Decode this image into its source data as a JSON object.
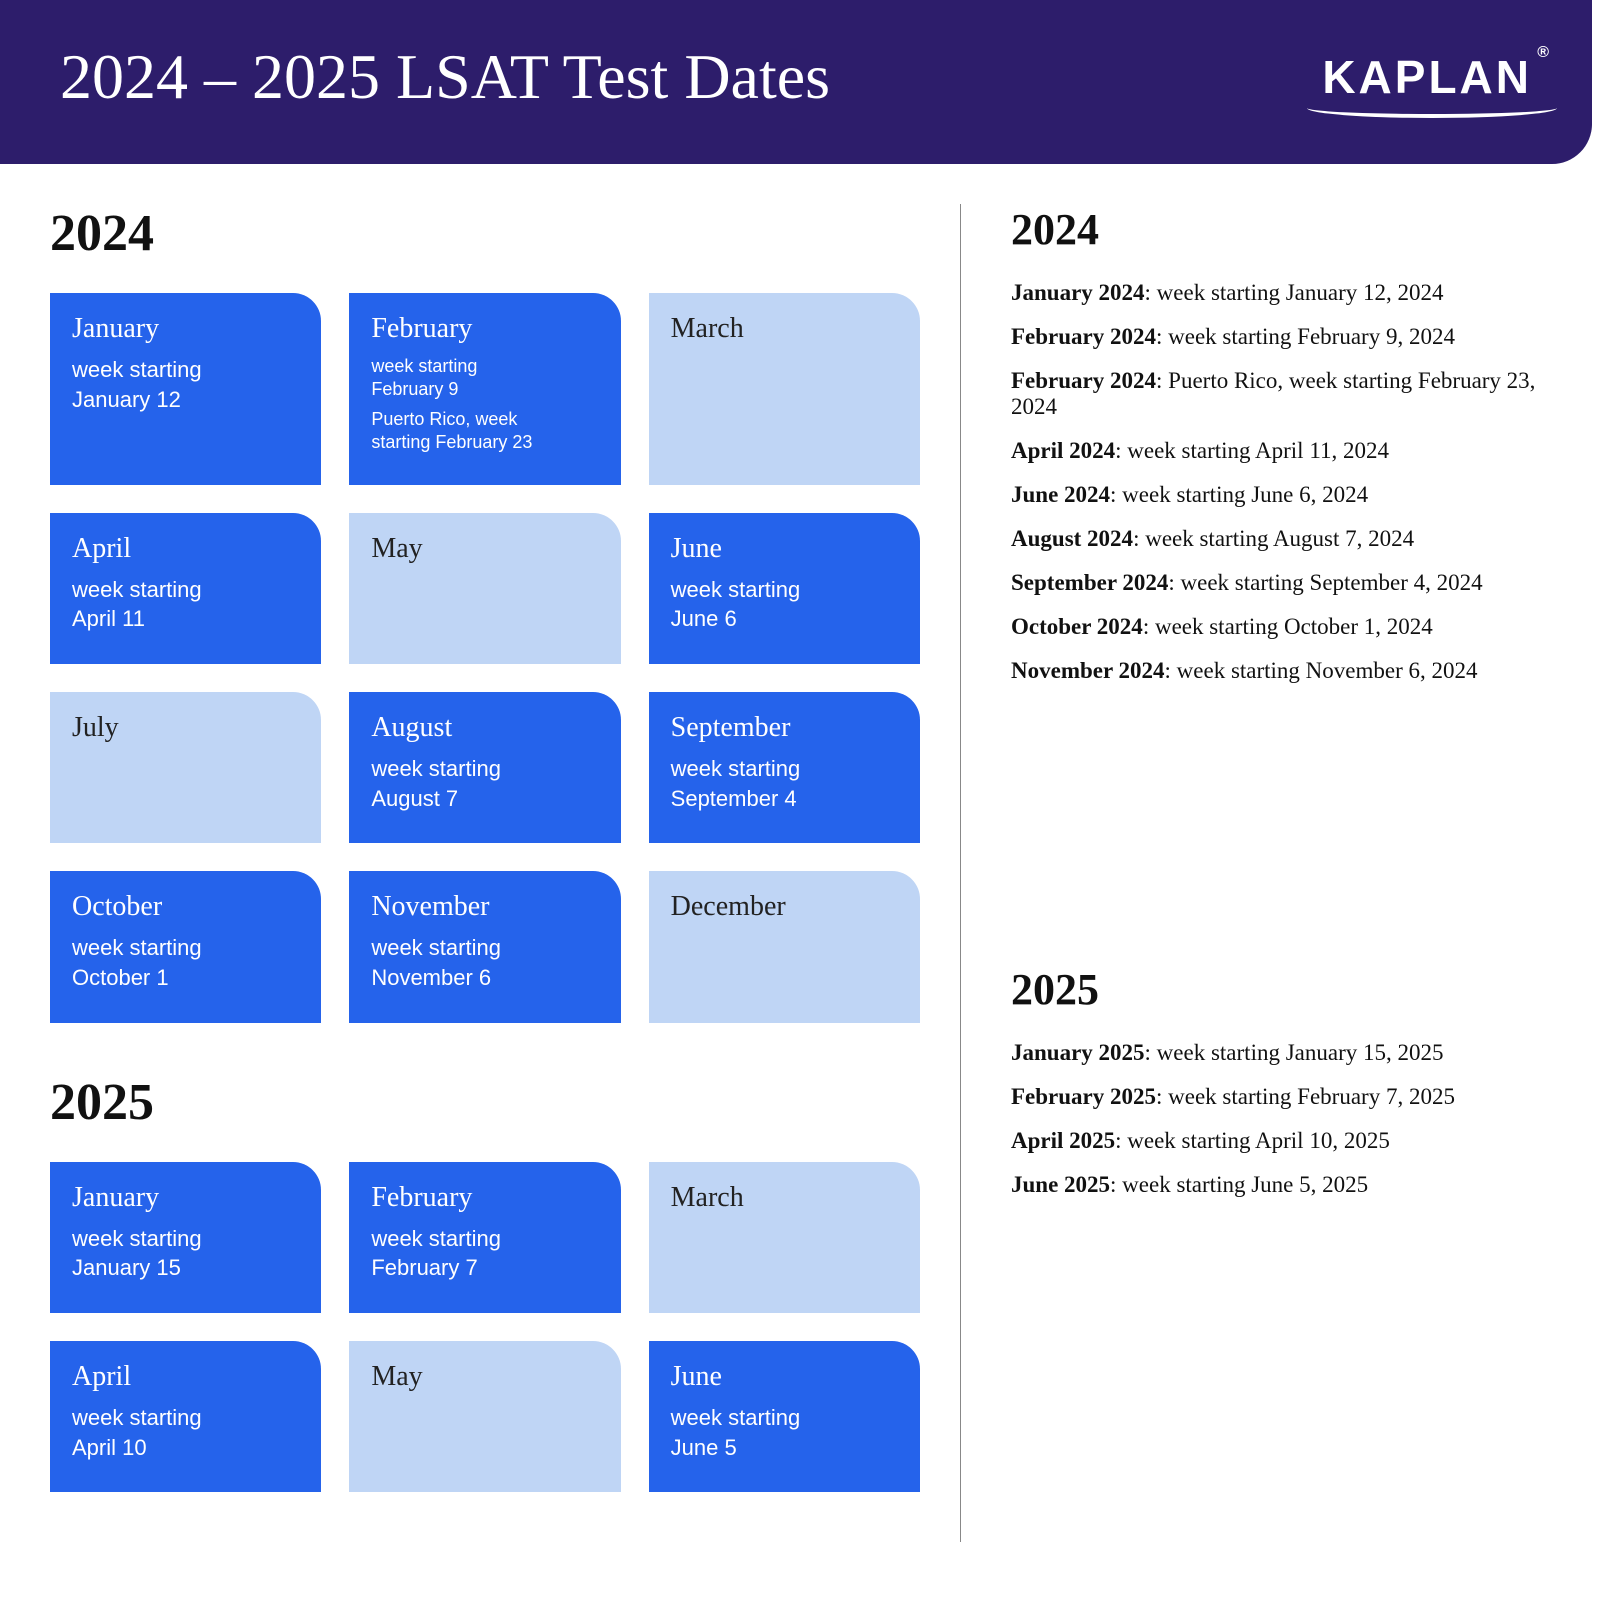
{
  "header": {
    "title": "2024 – 2025 LSAT Test Dates",
    "logo_text": "KAPLAN"
  },
  "colors": {
    "header_bg": "#2d1d6b",
    "card_active": "#2563eb",
    "card_inactive": "#bfd5f5",
    "text_dark": "#111111",
    "text_light": "#ffffff"
  },
  "left": {
    "sections": [
      {
        "year": "2024",
        "months": [
          {
            "name": "January",
            "active": true,
            "details": [
              [
                "week starting",
                "January 12"
              ]
            ]
          },
          {
            "name": "February",
            "active": true,
            "small": true,
            "details": [
              [
                "week starting",
                "February 9"
              ],
              [
                "Puerto Rico, week",
                "starting February 23"
              ]
            ]
          },
          {
            "name": "March",
            "active": false,
            "details": []
          },
          {
            "name": "April",
            "active": true,
            "details": [
              [
                "week starting",
                "April 11"
              ]
            ]
          },
          {
            "name": "May",
            "active": false,
            "details": []
          },
          {
            "name": "June",
            "active": true,
            "details": [
              [
                "week starting",
                "June 6"
              ]
            ]
          },
          {
            "name": "July",
            "active": false,
            "details": []
          },
          {
            "name": "August",
            "active": true,
            "details": [
              [
                "week starting",
                "August 7"
              ]
            ]
          },
          {
            "name": "September",
            "active": true,
            "details": [
              [
                "week starting",
                "September 4"
              ]
            ]
          },
          {
            "name": "October",
            "active": true,
            "details": [
              [
                "week starting",
                "October 1"
              ]
            ]
          },
          {
            "name": "November",
            "active": true,
            "details": [
              [
                "week starting",
                "November 6"
              ]
            ]
          },
          {
            "name": "December",
            "active": false,
            "details": []
          }
        ]
      },
      {
        "year": "2025",
        "months": [
          {
            "name": "January",
            "active": true,
            "details": [
              [
                "week starting",
                "January 15"
              ]
            ]
          },
          {
            "name": "February",
            "active": true,
            "details": [
              [
                "week starting",
                "February 7"
              ]
            ]
          },
          {
            "name": "March",
            "active": false,
            "details": []
          },
          {
            "name": "April",
            "active": true,
            "details": [
              [
                "week starting",
                "April 10"
              ]
            ]
          },
          {
            "name": "May",
            "active": false,
            "details": []
          },
          {
            "name": "June",
            "active": true,
            "details": [
              [
                "week starting",
                "June 5"
              ]
            ]
          }
        ]
      }
    ]
  },
  "right": {
    "sections": [
      {
        "year": "2024",
        "items": [
          {
            "label": "January 2024",
            "text": ": week starting January 12, 2024"
          },
          {
            "label": "February 2024",
            "text": ": week starting February 9, 2024"
          },
          {
            "label": "February 2024",
            "text": ": Puerto Rico, week starting February 23, 2024"
          },
          {
            "label": "April 2024",
            "text": ": week starting April 11, 2024"
          },
          {
            "label": "June 2024",
            "text": ": week starting June 6, 2024"
          },
          {
            "label": "August 2024",
            "text": ": week starting August 7, 2024"
          },
          {
            "label": "September 2024",
            "text": ": week starting September 4, 2024"
          },
          {
            "label": "October 2024",
            "text": ": week starting October 1, 2024"
          },
          {
            "label": "November 2024",
            "text": ": week starting November 6, 2024"
          }
        ]
      },
      {
        "year": "2025",
        "items": [
          {
            "label": "January 2025",
            "text": ": week starting January 15, 2025"
          },
          {
            "label": "February 2025",
            "text": ": week starting February 7, 2025"
          },
          {
            "label": "April 2025",
            "text": ": week starting April 10, 2025"
          },
          {
            "label": "June 2025",
            "text": ": week starting June 5, 2025"
          }
        ]
      }
    ]
  }
}
